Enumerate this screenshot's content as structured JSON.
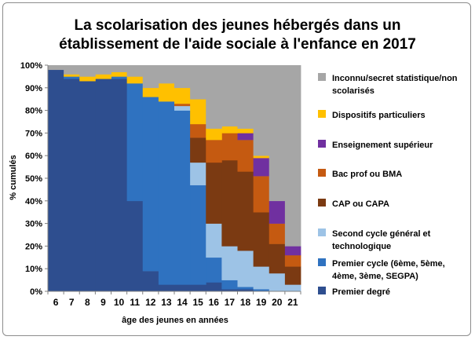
{
  "chart_data": {
    "type": "area",
    "title": "La scolarisation  des jeunes hébergés dans un établissement de l'aide sociale à l'enfance en 2017",
    "title_line1": "La scolarisation  des jeunes hébergés dans un",
    "title_line2": "établissement de l'aide sociale à l'enfance en 2017",
    "xlabel": "âge des jeunes en années",
    "ylabel": "% cumulés",
    "ylim": [
      0,
      100
    ],
    "y_ticks": [
      0,
      10,
      20,
      30,
      40,
      50,
      60,
      70,
      80,
      90,
      100
    ],
    "y_tick_labels": [
      "0%",
      "10%",
      "20%",
      "30%",
      "40%",
      "50%",
      "60%",
      "70%",
      "80%",
      "90%",
      "100%"
    ],
    "categories": [
      "6",
      "7",
      "8",
      "9",
      "10",
      "11",
      "12",
      "13",
      "14",
      "15",
      "16",
      "17",
      "18",
      "19",
      "20",
      "21"
    ],
    "series": [
      {
        "name": "Premier degré",
        "color": "#2E4E8F",
        "values": [
          98,
          94,
          93,
          94,
          94,
          40,
          9,
          3,
          3,
          3,
          4,
          1,
          1,
          0,
          0,
          0
        ]
      },
      {
        "name": "Premier cycle (6ème, 5ème, 4ème, 3ème, SEGPA)",
        "color": "#2F72C0",
        "values": [
          0,
          1,
          0,
          0,
          1,
          52,
          77,
          81,
          77,
          44,
          11,
          4,
          1,
          1,
          0,
          0
        ]
      },
      {
        "name": "Second cycle général et technologique",
        "color": "#9DC3E6",
        "values": [
          0,
          0,
          0,
          0,
          0,
          0,
          0,
          0,
          2,
          10,
          15,
          15,
          16,
          10,
          8,
          3
        ]
      },
      {
        "name": "CAP ou CAPA",
        "color": "#7B3A12",
        "values": [
          0,
          0,
          0,
          0,
          0,
          0,
          0,
          0,
          0,
          11,
          27,
          38,
          35,
          24,
          13,
          8
        ]
      },
      {
        "name": "Bac prof ou BMA",
        "color": "#C55A11",
        "values": [
          0,
          0,
          0,
          0,
          0,
          0,
          0,
          0,
          1,
          6,
          10,
          12,
          14,
          16,
          9,
          5
        ]
      },
      {
        "name": "Enseignement supérieur",
        "color": "#7030A0",
        "values": [
          0,
          0,
          0,
          0,
          0,
          0,
          0,
          0,
          0,
          0,
          0,
          0,
          3,
          8,
          10,
          4
        ]
      },
      {
        "name": "Dispositifs particuliers",
        "color": "#FFC000",
        "values": [
          0,
          1,
          2,
          2,
          2,
          3,
          4,
          8,
          7,
          11,
          5,
          3,
          2,
          1,
          0,
          0
        ]
      },
      {
        "name": "Inconnu/secret statistique/non scolarisés",
        "color": "#A6A6A6",
        "values": [
          2,
          4,
          5,
          4,
          3,
          5,
          10,
          8,
          10,
          15,
          28,
          27,
          28,
          40,
          60,
          80
        ]
      }
    ],
    "legend_order": [
      {
        "lines": [
          "Inconnu/secret statistique/non",
          "scolarisés"
        ],
        "series": 7
      },
      {
        "lines": [
          "Dispositifs particuliers"
        ],
        "series": 6
      },
      {
        "lines": [
          "Enseignement supérieur"
        ],
        "series": 5
      },
      {
        "lines": [
          "Bac prof ou BMA"
        ],
        "series": 4
      },
      {
        "lines": [
          "CAP ou CAPA"
        ],
        "series": 3
      },
      {
        "lines": [
          "Second cycle général et",
          "technologique"
        ],
        "series": 2
      },
      {
        "lines": [
          "Premier cycle (6ème, 5ème,",
          "4ème, 3ème, SEGPA)"
        ],
        "series": 1
      },
      {
        "lines": [
          "Premier degré"
        ],
        "series": 0
      }
    ],
    "grid": false,
    "legend_position": "right"
  }
}
